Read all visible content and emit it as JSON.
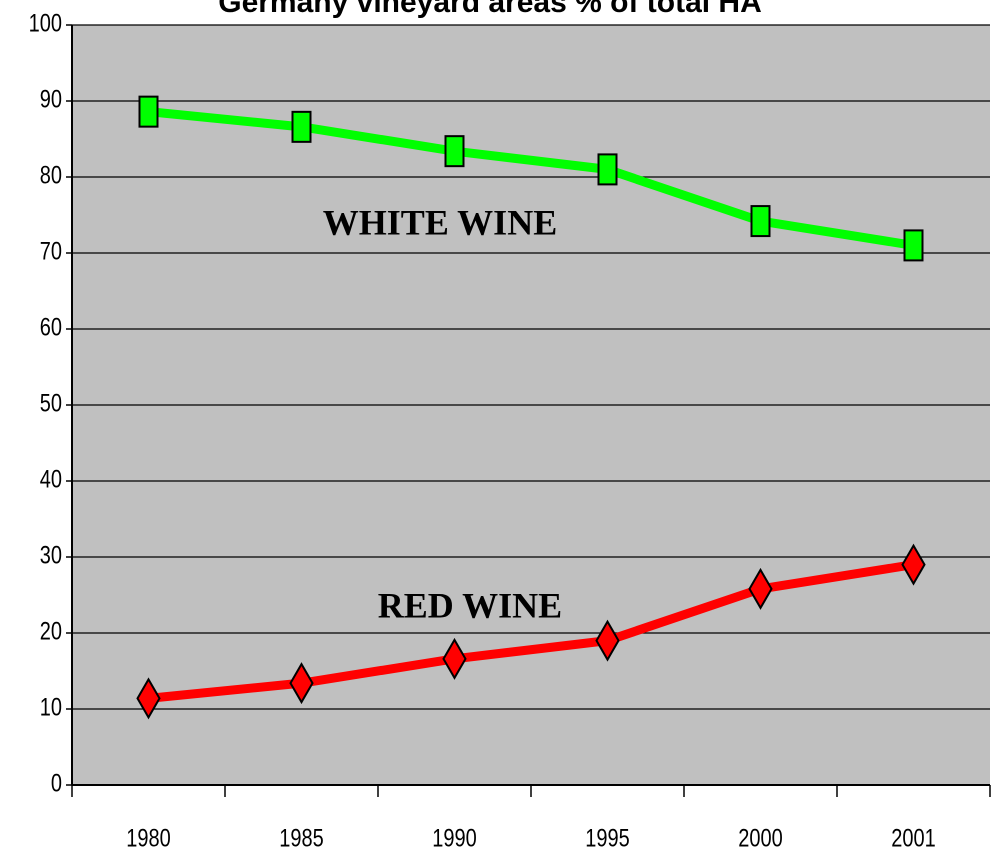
{
  "chart_data": {
    "type": "line",
    "title": "Germany vineyard areas % of total HA",
    "categories": [
      "1980",
      "1985",
      "1990",
      "1995",
      "2000",
      "2001"
    ],
    "series": [
      {
        "name": "WHITE WINE",
        "color": "#00ff00",
        "marker": "square",
        "values": [
          88.6,
          86.6,
          83.4,
          81,
          74.2,
          71
        ]
      },
      {
        "name": "RED WINE",
        "color": "#ff0000",
        "marker": "diamond",
        "values": [
          11.4,
          13.4,
          16.6,
          19,
          25.8,
          29
        ]
      }
    ],
    "ylim": [
      0,
      100
    ],
    "yticks": [
      0,
      10,
      20,
      30,
      40,
      50,
      60,
      70,
      80,
      90,
      100
    ],
    "grid": true,
    "plot_background": "#c0c0c0"
  }
}
